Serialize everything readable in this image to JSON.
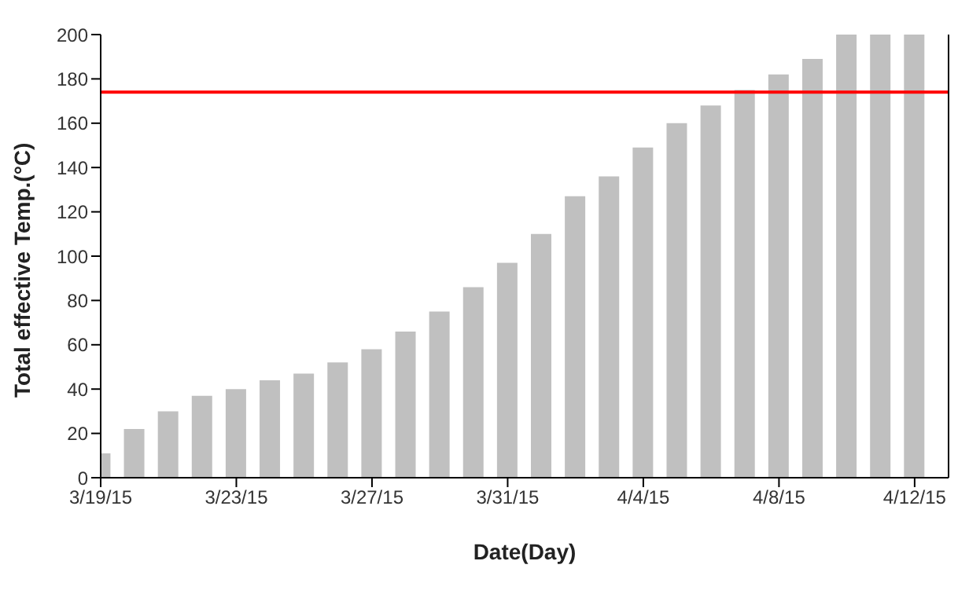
{
  "chart_data": {
    "type": "bar",
    "xlabel": "Date(Day)",
    "ylabel": "Total effective Temp.(°C)",
    "x": [
      "--03-19",
      "--03-20",
      "--03-21",
      "--03-22",
      "--03-23",
      "--03-24",
      "--03-25",
      "--03-26",
      "--03-27",
      "--03-28",
      "--03-29",
      "--03-30",
      "--03-31",
      "--04-01",
      "--04-02",
      "--04-03",
      "--04-04",
      "--04-05",
      "--04-06",
      "--04-07",
      "--04-08",
      "--04-09",
      "--04-10",
      "--04-11",
      "--04-12"
    ],
    "values": [
      11,
      22,
      30,
      37,
      40,
      44,
      47,
      52,
      58,
      66,
      75,
      86,
      97,
      110,
      127,
      136,
      149,
      160,
      168,
      175,
      182,
      189,
      200,
      200,
      200
    ],
    "color": "#c0c0c0",
    "xlim": [
      "--03-19",
      "--04-13"
    ],
    "xticks": [
      {
        "value": "--03-19",
        "label": "3/19/15"
      },
      {
        "value": "--03-23",
        "label": "3/23/15"
      },
      {
        "value": "--03-27",
        "label": "3/27/15"
      },
      {
        "value": "--03-31",
        "label": "3/31/15"
      },
      {
        "value": "--04-04",
        "label": "4/4/15"
      },
      {
        "value": "--04-08",
        "label": "4/8/15"
      },
      {
        "value": "--04-12",
        "label": "4/12/15"
      }
    ],
    "ylim": [
      0,
      200
    ],
    "yticks": [
      0,
      20,
      40,
      60,
      80,
      100,
      120,
      140,
      160,
      180,
      200
    ],
    "ref_lines": [
      {
        "axis": "y",
        "value": 174,
        "color": "#ff0000"
      }
    ],
    "grid": false,
    "legend": false
  }
}
